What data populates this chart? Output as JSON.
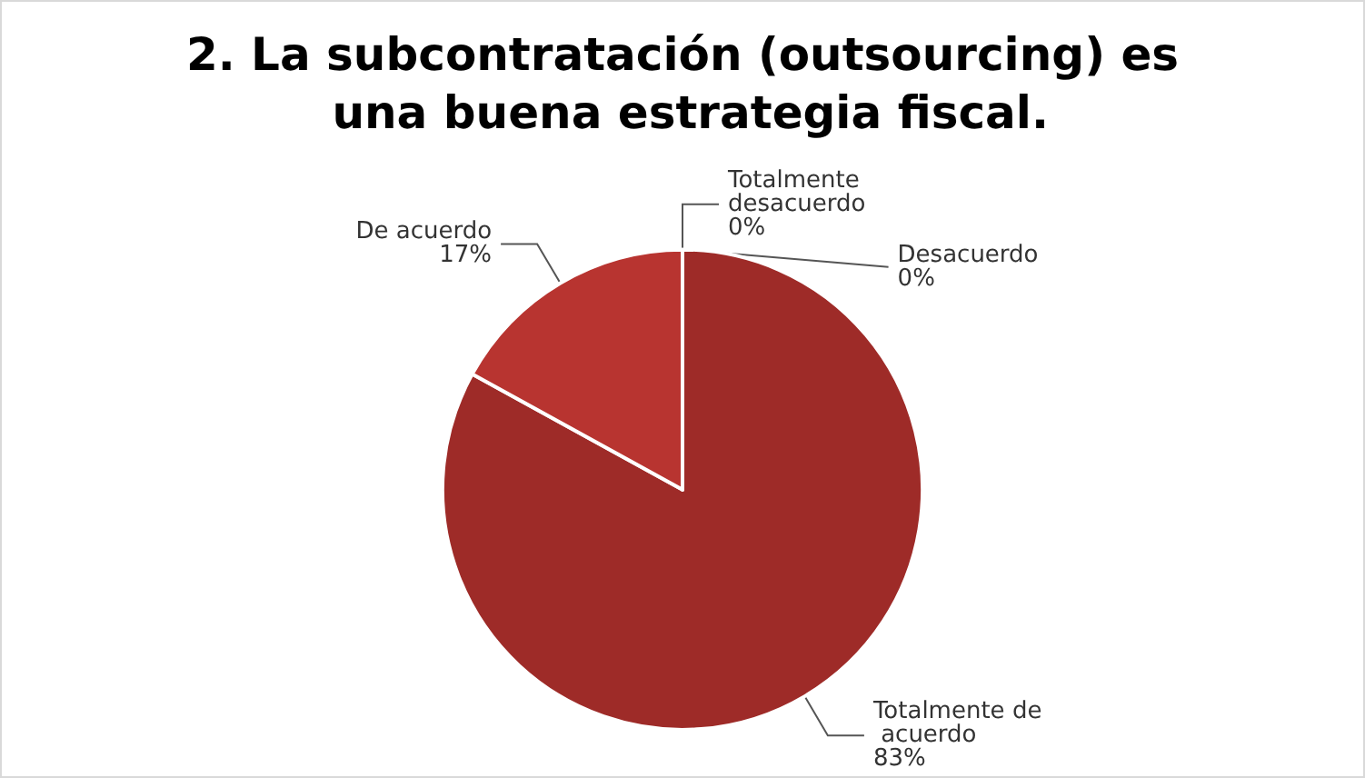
{
  "chart_data": {
    "type": "pie",
    "title": "2. La subcontratación (outsourcing) es una buena estrategia fiscal.",
    "categories": [
      "Totalmente de acuerdo",
      "De acuerdo",
      "Desacuerdo",
      "Totalmente desacuerdo"
    ],
    "values": [
      83,
      17,
      0,
      0
    ],
    "value_labels": [
      "83%",
      "17%",
      "0%",
      "0%"
    ],
    "colors": [
      "#9e2b28",
      "#b83430",
      "#c0504d",
      "#c0504d"
    ],
    "legend": false
  }
}
